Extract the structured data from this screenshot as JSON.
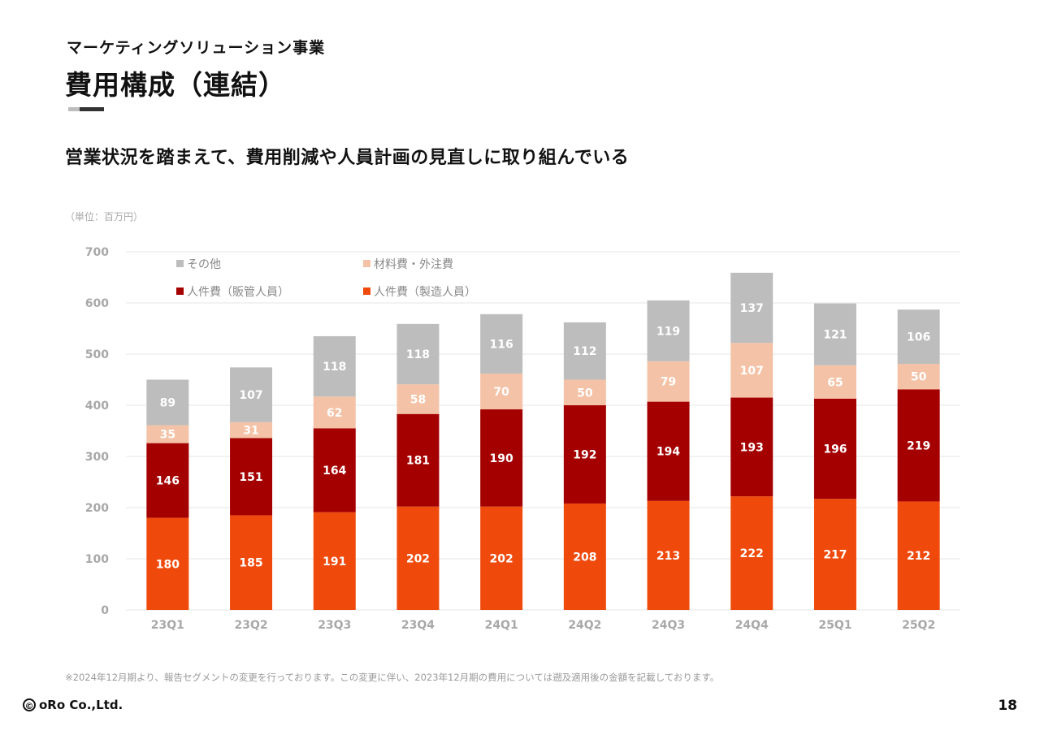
{
  "header": {
    "section_label": "マーケティングソリューション事業",
    "title": "費用構成（連結）"
  },
  "headline": "営業状況を踏まえて、費用削減や人員計画の見直しに取り組んでいる",
  "unit_label": "（単位：百万円）",
  "footnote": "※2024年12月期より、報告セグメントの変更を行っております。この変更に伴い、2023年12月期の費用については遡及適用後の金額を記載しております。",
  "footer": {
    "logo_symbol": "©",
    "logo_text": "oRo Co.,Ltd.",
    "page_number": "18"
  },
  "chart_data": {
    "type": "bar",
    "stacked": true,
    "categories": [
      "23Q1",
      "23Q2",
      "23Q3",
      "23Q4",
      "24Q1",
      "24Q2",
      "24Q3",
      "24Q4",
      "25Q1",
      "25Q2"
    ],
    "series": [
      {
        "name": "人件費（製造人員）",
        "color": "#ef4a0c",
        "values": [
          180,
          185,
          191,
          202,
          202,
          208,
          213,
          222,
          217,
          212
        ]
      },
      {
        "name": "人件費（販管人員）",
        "color": "#a50000",
        "values": [
          146,
          151,
          164,
          181,
          190,
          192,
          194,
          193,
          196,
          219
        ]
      },
      {
        "name": "材料費・外注費",
        "color": "#f4c2a6",
        "values": [
          35,
          31,
          62,
          58,
          70,
          50,
          79,
          107,
          65,
          50
        ]
      },
      {
        "name": "その他",
        "color": "#bdbdbd",
        "values": [
          89,
          107,
          118,
          118,
          116,
          112,
          119,
          137,
          121,
          106
        ]
      }
    ],
    "legend_order": [
      "その他",
      "材料費・外注費",
      "人件費（販管人員）",
      "人件費（製造人員）"
    ],
    "y_ticks": [
      0,
      100,
      200,
      300,
      400,
      500,
      600,
      700
    ],
    "ylim": [
      0,
      700
    ],
    "grid": true,
    "legend_position": "top-left",
    "label_colors": {
      "その他": "#ffffff",
      "材料費・外注費": "#ffffff",
      "人件費（販管人員）": "#ffffff",
      "人件費（製造人員）": "#ffffff"
    },
    "axis_text_color": "#a8a8a8",
    "grid_color": "#e6e6e6"
  }
}
